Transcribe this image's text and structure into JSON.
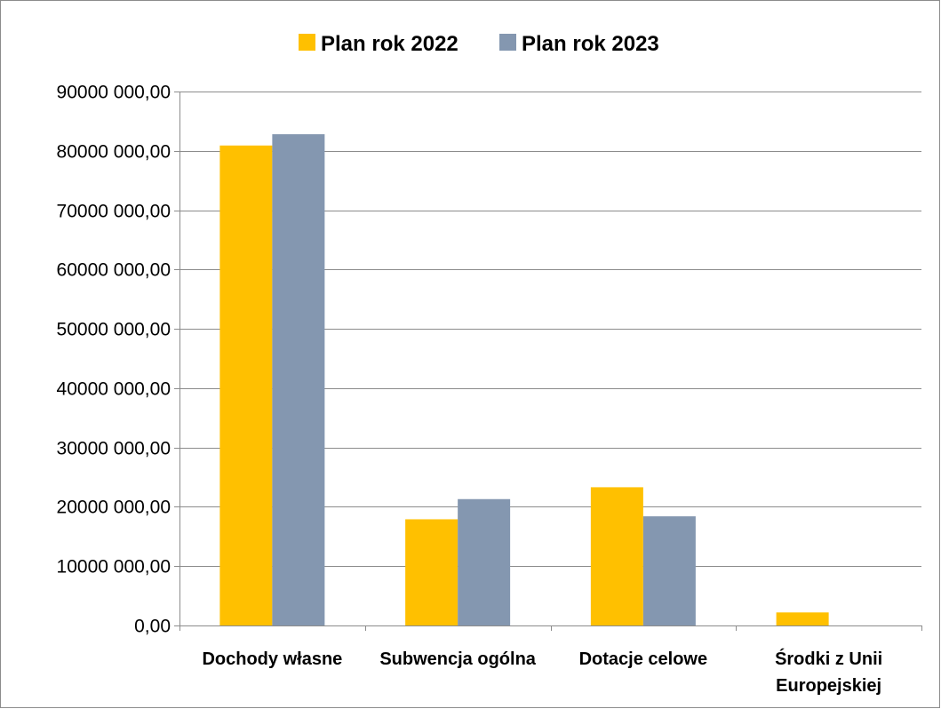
{
  "chart_data": {
    "type": "bar",
    "title": "",
    "xlabel": "",
    "ylabel": "",
    "categories": [
      "Dochody własne",
      "Subwencja ogólna",
      "Dotacje celowe",
      "Środki z Unii Europejskiej"
    ],
    "category_lines": [
      [
        "Dochody własne"
      ],
      [
        "Subwencja ogólna"
      ],
      [
        "Dotacje celowe"
      ],
      [
        "Środki z Unii",
        "Europejskiej"
      ]
    ],
    "series": [
      {
        "name": "Plan rok 2022",
        "color": "#FFC000",
        "values": [
          80900000,
          17900000,
          23300000,
          2200000
        ]
      },
      {
        "name": "Plan rok 2023",
        "color": "#8497B0",
        "values": [
          82800000,
          21300000,
          18400000,
          0
        ]
      }
    ],
    "ylim": [
      0,
      90000000
    ],
    "yticks": [
      0,
      10000000,
      20000000,
      30000000,
      40000000,
      50000000,
      60000000,
      70000000,
      80000000,
      90000000
    ],
    "ytick_labels": [
      "0,00",
      "10000 000,00",
      "20000 000,00",
      "30000 000,00",
      "40000 000,00",
      "50000 000,00",
      "60000 000,00",
      "70000 000,00",
      "80000 000,00",
      "90000 000,00"
    ],
    "grid": true,
    "legend_position": "top"
  }
}
